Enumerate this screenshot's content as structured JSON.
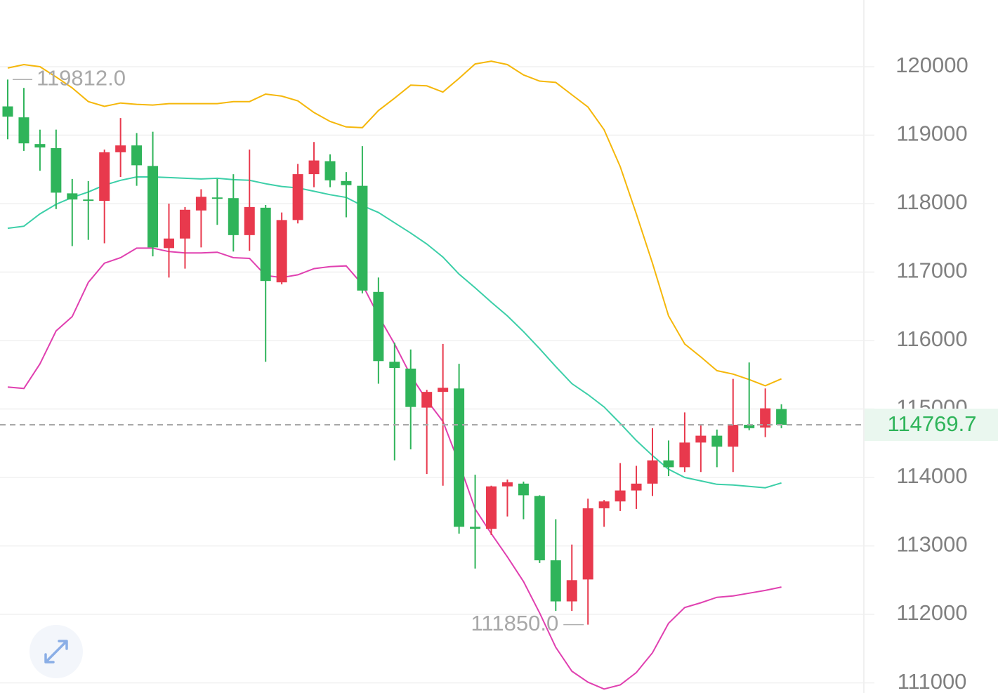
{
  "chart_data": {
    "type": "candlestick",
    "ylim": [
      110852,
      120974
    ],
    "yticks": [
      111000,
      112000,
      113000,
      114000,
      115000,
      116000,
      117000,
      118000,
      119000,
      120000
    ],
    "grid": true,
    "up_color": "#e8394d",
    "down_color": "#2fb45a",
    "candles": {
      "open": [
        119420,
        119260,
        118870,
        118810,
        118150,
        118060,
        118040,
        118750,
        118850,
        118550,
        117350,
        117490,
        117900,
        118090,
        118080,
        117540,
        117940,
        116850,
        117760,
        118430,
        118620,
        118330,
        118260,
        116710,
        115690,
        115590,
        115020,
        115250,
        115300,
        113280,
        113250,
        113870,
        113910,
        113730,
        112790,
        112190,
        112510,
        113550,
        113650,
        113810,
        113910,
        114250,
        114150,
        114510,
        114610,
        114450,
        114770,
        114730,
        115000
      ],
      "high": [
        119812,
        119690,
        119080,
        119080,
        118360,
        118330,
        118790,
        119250,
        119030,
        119050,
        118000,
        117950,
        118210,
        118360,
        118430,
        118790,
        117980,
        117870,
        118580,
        118900,
        118720,
        118460,
        118840,
        116920,
        115970,
        115870,
        115280,
        115950,
        115660,
        114040,
        113880,
        113970,
        113940,
        113740,
        113390,
        113020,
        113690,
        113670,
        114210,
        114170,
        114720,
        114540,
        114950,
        114780,
        114700,
        115440,
        115680,
        115300,
        115070
      ],
      "low": [
        118940,
        118770,
        118480,
        117920,
        117380,
        117470,
        117420,
        118390,
        118260,
        117230,
        116920,
        117050,
        117360,
        117690,
        117300,
        117310,
        115690,
        116820,
        117710,
        118240,
        118240,
        117800,
        116690,
        115370,
        114250,
        114410,
        114050,
        113880,
        113180,
        112670,
        113160,
        113430,
        113390,
        112750,
        112050,
        112050,
        111850,
        113280,
        113510,
        113540,
        113730,
        114020,
        114080,
        114080,
        114150,
        114080,
        114690,
        114590,
        114720
      ],
      "close": [
        119270,
        118880,
        118820,
        118160,
        118060,
        118040,
        118750,
        118850,
        118560,
        117360,
        117490,
        117910,
        118100,
        118070,
        117540,
        117950,
        116870,
        117760,
        118430,
        118630,
        118340,
        118270,
        116730,
        115700,
        115600,
        115030,
        115250,
        115310,
        113280,
        113250,
        113870,
        113930,
        113740,
        112790,
        112190,
        112500,
        113550,
        113650,
        113810,
        113910,
        114250,
        114150,
        114510,
        114610,
        114450,
        114770,
        114720,
        115010,
        114769.7
      ]
    },
    "bands": [
      {
        "color": "#f5b70a",
        "values": [
          119980,
          120030,
          120000,
          119850,
          119690,
          119490,
          119420,
          119470,
          119450,
          119440,
          119460,
          119460,
          119460,
          119460,
          119490,
          119490,
          119600,
          119570,
          119500,
          119330,
          119200,
          119120,
          119110,
          119360,
          119540,
          119730,
          119720,
          119630,
          119830,
          120040,
          120080,
          120030,
          119880,
          119790,
          119770,
          119590,
          119410,
          119080,
          118540,
          117850,
          117130,
          116360,
          115950,
          115760,
          115560,
          115510,
          115430,
          115340,
          115440
        ]
      },
      {
        "color": "#3ccfa8",
        "values": [
          117640,
          117670,
          117850,
          117990,
          118090,
          118170,
          118270,
          118340,
          118390,
          118390,
          118380,
          118370,
          118360,
          118370,
          118350,
          118340,
          118290,
          118250,
          118230,
          118180,
          118130,
          118090,
          117970,
          117870,
          117720,
          117570,
          117410,
          117220,
          116970,
          116770,
          116560,
          116360,
          116130,
          115880,
          115620,
          115370,
          115210,
          115030,
          114790,
          114540,
          114320,
          114120,
          114000,
          113950,
          113900,
          113890,
          113870,
          113850,
          113920
        ]
      },
      {
        "color": "#e040b0",
        "values": [
          115320,
          115300,
          115660,
          116140,
          116350,
          116850,
          117130,
          117210,
          117350,
          117350,
          117300,
          117280,
          117280,
          117290,
          117210,
          117200,
          116950,
          116920,
          116960,
          117050,
          117080,
          117090,
          116820,
          116360,
          115950,
          115490,
          115130,
          114820,
          114210,
          113540,
          113180,
          112840,
          112480,
          112020,
          111520,
          111170,
          111010,
          110910,
          110970,
          111150,
          111440,
          111870,
          112100,
          112170,
          112250,
          112270,
          112310,
          112350,
          112400
        ]
      }
    ],
    "annotations": [
      {
        "index": 0,
        "value": 119812.0,
        "label": "119812.0",
        "side": "right"
      },
      {
        "index": 36,
        "value": 111850.0,
        "label": "111850.0",
        "side": "left"
      }
    ],
    "last_price": 114769.7
  }
}
